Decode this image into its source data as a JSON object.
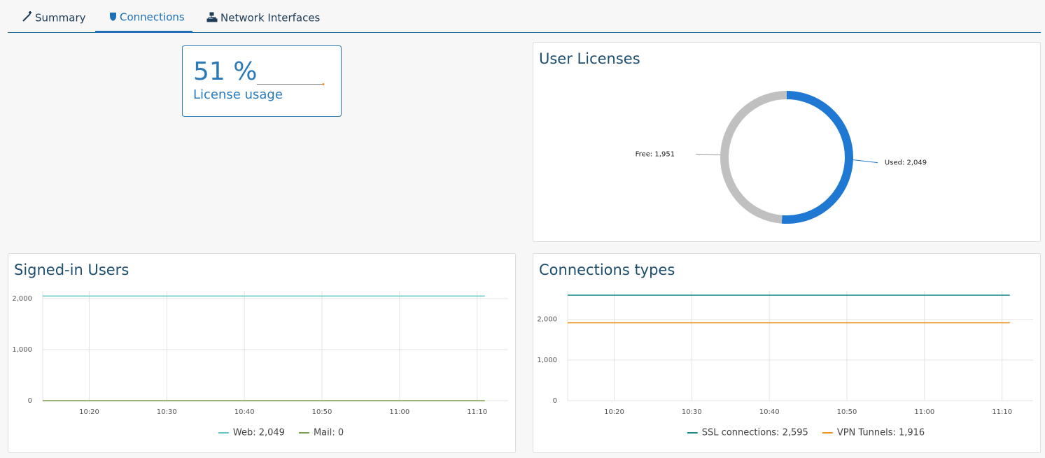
{
  "tabs": [
    "Summary",
    "Connections",
    "Network Interfaces"
  ],
  "active_tab": 1,
  "license_card": {
    "value_label": "51 %",
    "label": "License usage"
  },
  "chart_data": [
    {
      "type": "pie",
      "title": "User Licenses",
      "values": [
        2049,
        1951
      ],
      "value_labels": [
        "Used: 2,049",
        "Free: 1,951"
      ],
      "colors": [
        "#1f78d1",
        "#c0c0c0"
      ],
      "donut": true
    },
    {
      "type": "line",
      "title": "Signed-in Users",
      "x": [
        614,
        671
      ],
      "series": [
        {
          "name": "Web: 2,049",
          "color": "#5cc8c4",
          "values": [
            2049,
            2049
          ]
        },
        {
          "name": "Mail: 0",
          "color": "#7a9e4e",
          "values": [
            0,
            0
          ]
        }
      ],
      "xlim": [
        614,
        674
      ],
      "xticks": [
        {
          "value": 620,
          "label": "10:20"
        },
        {
          "value": 630,
          "label": "10:30"
        },
        {
          "value": 640,
          "label": "10:40"
        },
        {
          "value": 650,
          "label": "10:50"
        },
        {
          "value": 660,
          "label": "11:00"
        },
        {
          "value": 670,
          "label": "11:10"
        }
      ],
      "ylim": [
        0,
        2150
      ],
      "yticks": [
        0,
        {
          "value": 1000,
          "label": "1,000"
        },
        {
          "value": 2000,
          "label": "2,000"
        }
      ],
      "grid": true
    },
    {
      "type": "line",
      "title": "Connections types",
      "x": [
        614,
        671
      ],
      "series": [
        {
          "name": "SSL connections: 2,595",
          "color": "#1a8a88",
          "values": [
            2595,
            2595
          ]
        },
        {
          "name": "VPN Tunnels: 1,916",
          "color": "#f0921e",
          "values": [
            1916,
            1916
          ]
        }
      ],
      "xlim": [
        614,
        674
      ],
      "xticks": [
        {
          "value": 620,
          "label": "10:20"
        },
        {
          "value": 630,
          "label": "10:30"
        },
        {
          "value": 640,
          "label": "10:40"
        },
        {
          "value": 650,
          "label": "10:50"
        },
        {
          "value": 660,
          "label": "11:00"
        },
        {
          "value": 670,
          "label": "11:10"
        }
      ],
      "ylim": [
        0,
        2700
      ],
      "yticks": [
        0,
        {
          "value": 1000,
          "label": "1,000"
        },
        {
          "value": 2000,
          "label": "2,000"
        }
      ],
      "grid": true
    }
  ]
}
